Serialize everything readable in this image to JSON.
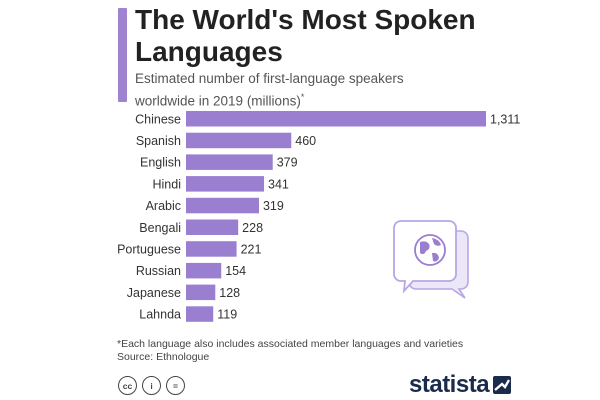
{
  "colors": {
    "accent": "#9f83d0",
    "bar": "#9a7ed0",
    "brand": "#1b2b4b",
    "illustration": "#b8a6e6"
  },
  "header": {
    "title_line1": "The World's Most Spoken",
    "title_line2": "Languages",
    "subtitle_line1": "Estimated number of first-language speakers",
    "subtitle_line2": "worldwide in 2019 (millions)",
    "subtitle_mark": "*"
  },
  "chart_data": {
    "type": "bar",
    "orientation": "horizontal",
    "title": "The World's Most Spoken Languages",
    "subtitle": "Estimated number of first-language speakers worldwide in 2019 (millions)*",
    "categories": [
      "Chinese",
      "Spanish",
      "English",
      "Hindi",
      "Arabic",
      "Bengali",
      "Portuguese",
      "Russian",
      "Japanese",
      "Lahnda"
    ],
    "values": [
      1311,
      460,
      379,
      341,
      319,
      228,
      221,
      154,
      128,
      119
    ],
    "value_labels": [
      "1,311",
      "460",
      "379",
      "341",
      "319",
      "228",
      "221",
      "154",
      "128",
      "119"
    ],
    "xlabel": "",
    "ylabel": "",
    "xlim": [
      0,
      1311
    ],
    "grid": false,
    "legend": "none"
  },
  "illustration": {
    "icon": "speech-bubble-globe-icon"
  },
  "footer": {
    "note": "*Each language also includes associated member languages and varieties",
    "source": "Source: Ethnologue",
    "license_icons": [
      {
        "name": "cc-icon",
        "glyph": "cc"
      },
      {
        "name": "attribution-icon",
        "glyph": "i"
      },
      {
        "name": "no-derivatives-icon",
        "glyph": "="
      }
    ],
    "brand": "statista",
    "brand_icon": "statista-logo-icon"
  }
}
